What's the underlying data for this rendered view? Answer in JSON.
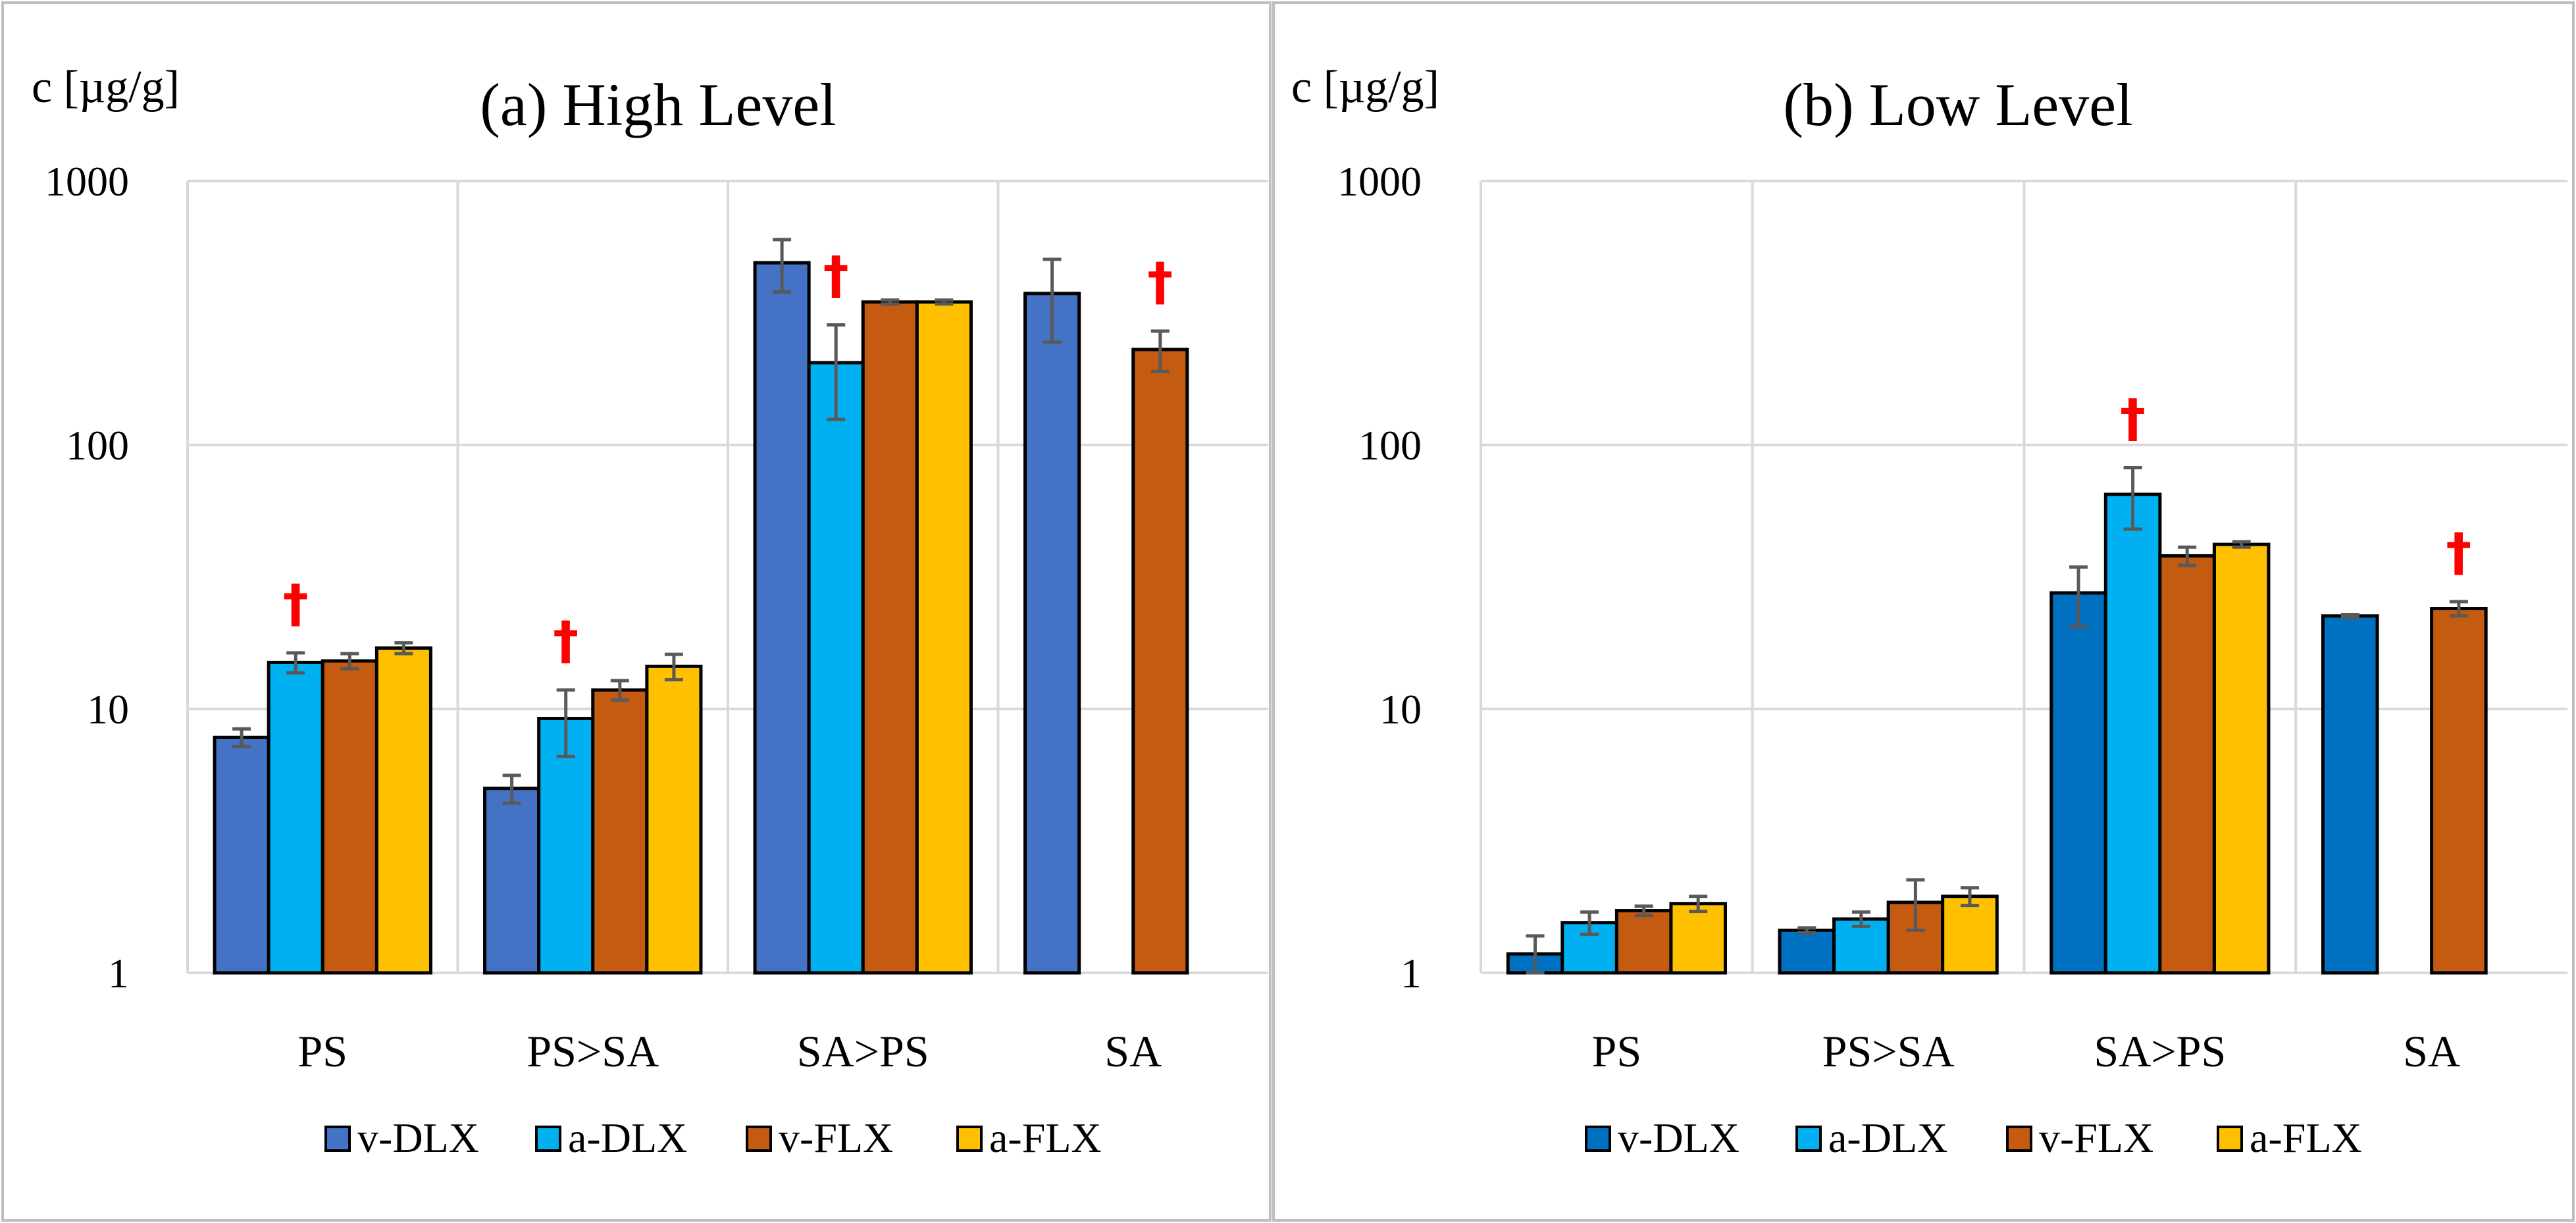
{
  "chart_data": [
    {
      "type": "bar",
      "title": "(a) High Level",
      "ylabel": "c [µg/g]",
      "xlabel": "",
      "yscale": "log",
      "ylim": [
        1,
        1000
      ],
      "yticks": [
        "1",
        "10",
        "100",
        "1000"
      ],
      "categories": [
        "PS",
        "PS>SA",
        "SA>PS",
        "SA"
      ],
      "series": [
        {
          "name": "v-DLX",
          "color": "#4472c4",
          "values": [
            7.8,
            5.0,
            490,
            375
          ],
          "errors": [
            0.6,
            0.6,
            110,
            130
          ]
        },
        {
          "name": "a-DLX",
          "color": "#00b0f0",
          "values": [
            15,
            9.2,
            205,
            null
          ],
          "errors": [
            1.3,
            2.6,
            80,
            null
          ]
        },
        {
          "name": "v-FLX",
          "color": "#c55a11",
          "values": [
            15.2,
            11.8,
            348,
            230
          ],
          "errors": [
            1.0,
            1.0,
            6,
            40
          ]
        },
        {
          "name": "a-FLX",
          "color": "#ffc000",
          "values": [
            17,
            14.5,
            348,
            null
          ],
          "errors": [
            0.8,
            1.6,
            6,
            null
          ]
        }
      ],
      "annotations": [
        {
          "text": "†",
          "category": "PS",
          "series": "a-DLX"
        },
        {
          "text": "†",
          "category": "PS>SA",
          "series": "a-DLX"
        },
        {
          "text": "†",
          "category": "SA>PS",
          "series": "a-DLX"
        },
        {
          "text": "†",
          "category": "SA",
          "series": "v-FLX"
        }
      ]
    },
    {
      "type": "bar",
      "title": "(b) Low Level",
      "ylabel": "c [µg/g]",
      "xlabel": "",
      "yscale": "log",
      "ylim": [
        1,
        1000
      ],
      "yticks": [
        "1",
        "10",
        "100",
        "1000"
      ],
      "categories": [
        "PS",
        "PS>SA",
        "SA>PS",
        "SA"
      ],
      "series": [
        {
          "name": "v-DLX",
          "color": "#0070c0",
          "values": [
            1.18,
            1.45,
            27.5,
            22.5
          ],
          "errors": [
            0.2,
            0.03,
            7,
            0.3
          ]
        },
        {
          "name": "a-DLX",
          "color": "#00b0f0",
          "values": [
            1.55,
            1.6,
            65,
            null
          ],
          "errors": [
            0.15,
            0.1,
            17,
            null
          ]
        },
        {
          "name": "v-FLX",
          "color": "#c55a11",
          "values": [
            1.72,
            1.85,
            38,
            24
          ],
          "errors": [
            0.07,
            0.4,
            3,
            1.5
          ]
        },
        {
          "name": "a-FLX",
          "color": "#ffc000",
          "values": [
            1.83,
            1.95,
            42,
            null
          ],
          "errors": [
            0.12,
            0.15,
            1,
            null
          ]
        }
      ],
      "annotations": [
        {
          "text": "†",
          "category": "SA>PS",
          "series": "a-DLX"
        },
        {
          "text": "†",
          "category": "SA",
          "series": "v-FLX"
        }
      ]
    }
  ]
}
